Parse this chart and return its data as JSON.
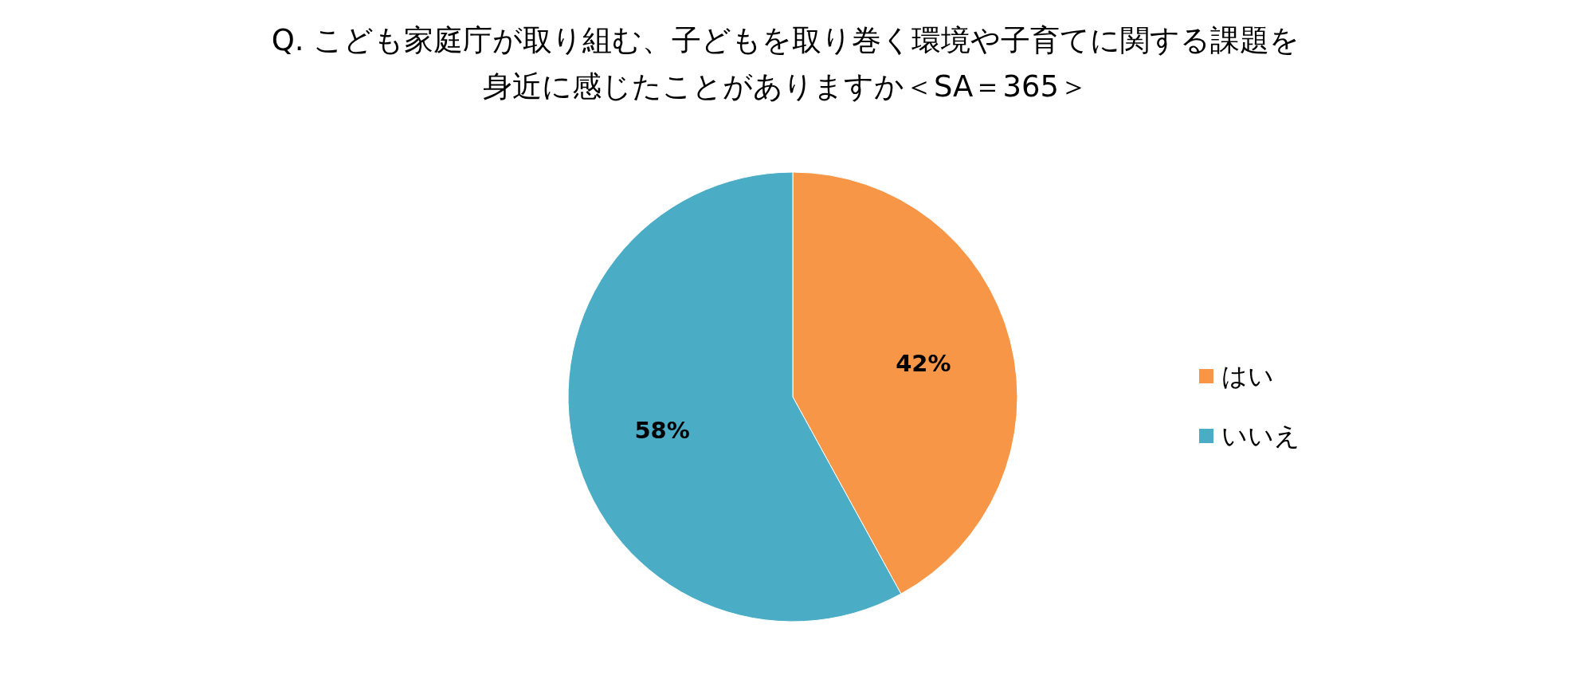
{
  "chart_data": {
    "type": "pie",
    "title": "Q. こども家庭庁が取り組む、子どもを取り巻く環境や子育てに関する課題を身近に感じたことがありますか＜SA＝365＞",
    "categories": [
      "はい",
      "いいえ"
    ],
    "values": [
      42,
      58
    ],
    "colors": [
      "#f79646",
      "#4bacc6"
    ],
    "value_labels": [
      "42%",
      "58%"
    ],
    "legend": "right"
  }
}
